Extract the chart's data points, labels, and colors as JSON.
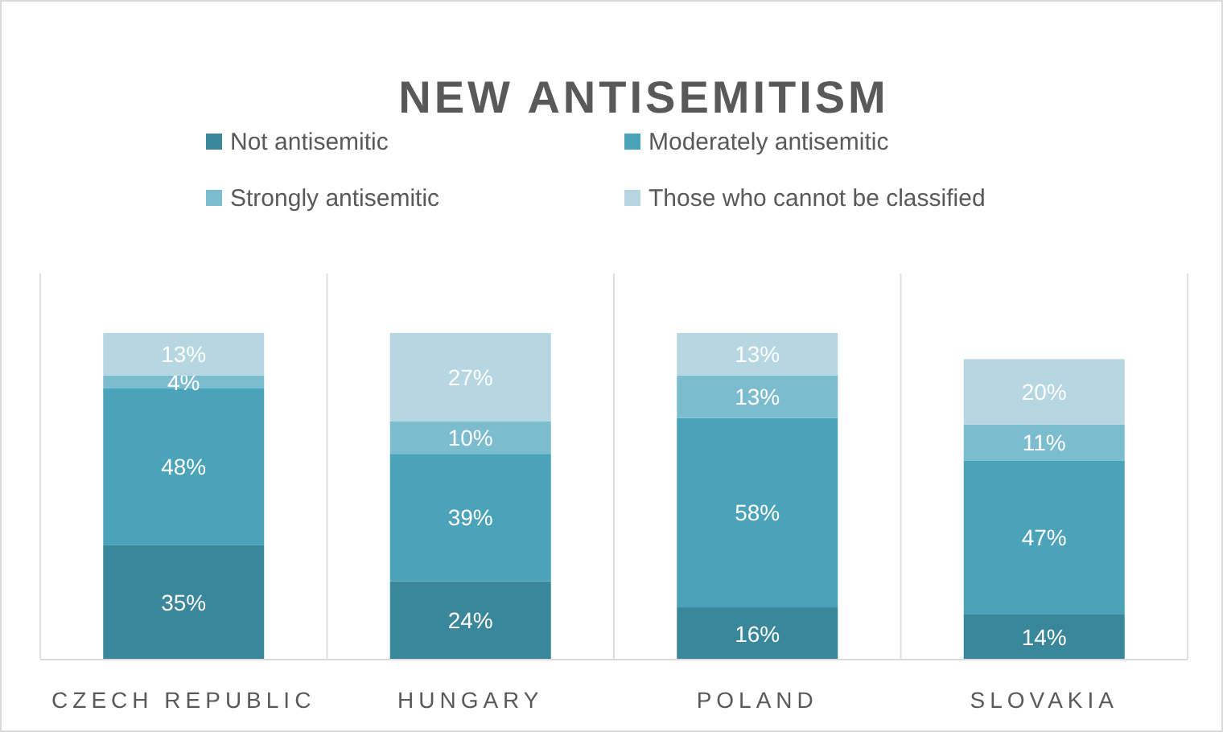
{
  "chart_data": {
    "type": "bar",
    "title": "NEW ANTISEMITISM",
    "stacked": true,
    "legend": "top",
    "categories": [
      "CZECH REPUBLIC",
      "HUNGARY",
      "POLAND",
      "SLOVAKIA"
    ],
    "series": [
      {
        "name": "Not antisemitic",
        "color": "#3a879b",
        "values": [
          35,
          24,
          16,
          14
        ],
        "value_labels": [
          "35%",
          "24%",
          "16%",
          "14%"
        ]
      },
      {
        "name": "Moderately antisemitic",
        "color": "#4aa3b9",
        "values": [
          48,
          39,
          58,
          47
        ],
        "value_labels": [
          "48%",
          "39%",
          "58%",
          "47%"
        ]
      },
      {
        "name": "Strongly antisemitic",
        "color": "#7bbdcf",
        "values": [
          4,
          10,
          13,
          11
        ],
        "value_labels": [
          "4%",
          "10%",
          "13%",
          "11%"
        ]
      },
      {
        "name": "Those who cannot be classified",
        "color": "#b6d6e1",
        "values": [
          13,
          27,
          13,
          20
        ],
        "value_labels": [
          "13%",
          "27%",
          "13%",
          "20%"
        ]
      }
    ]
  }
}
